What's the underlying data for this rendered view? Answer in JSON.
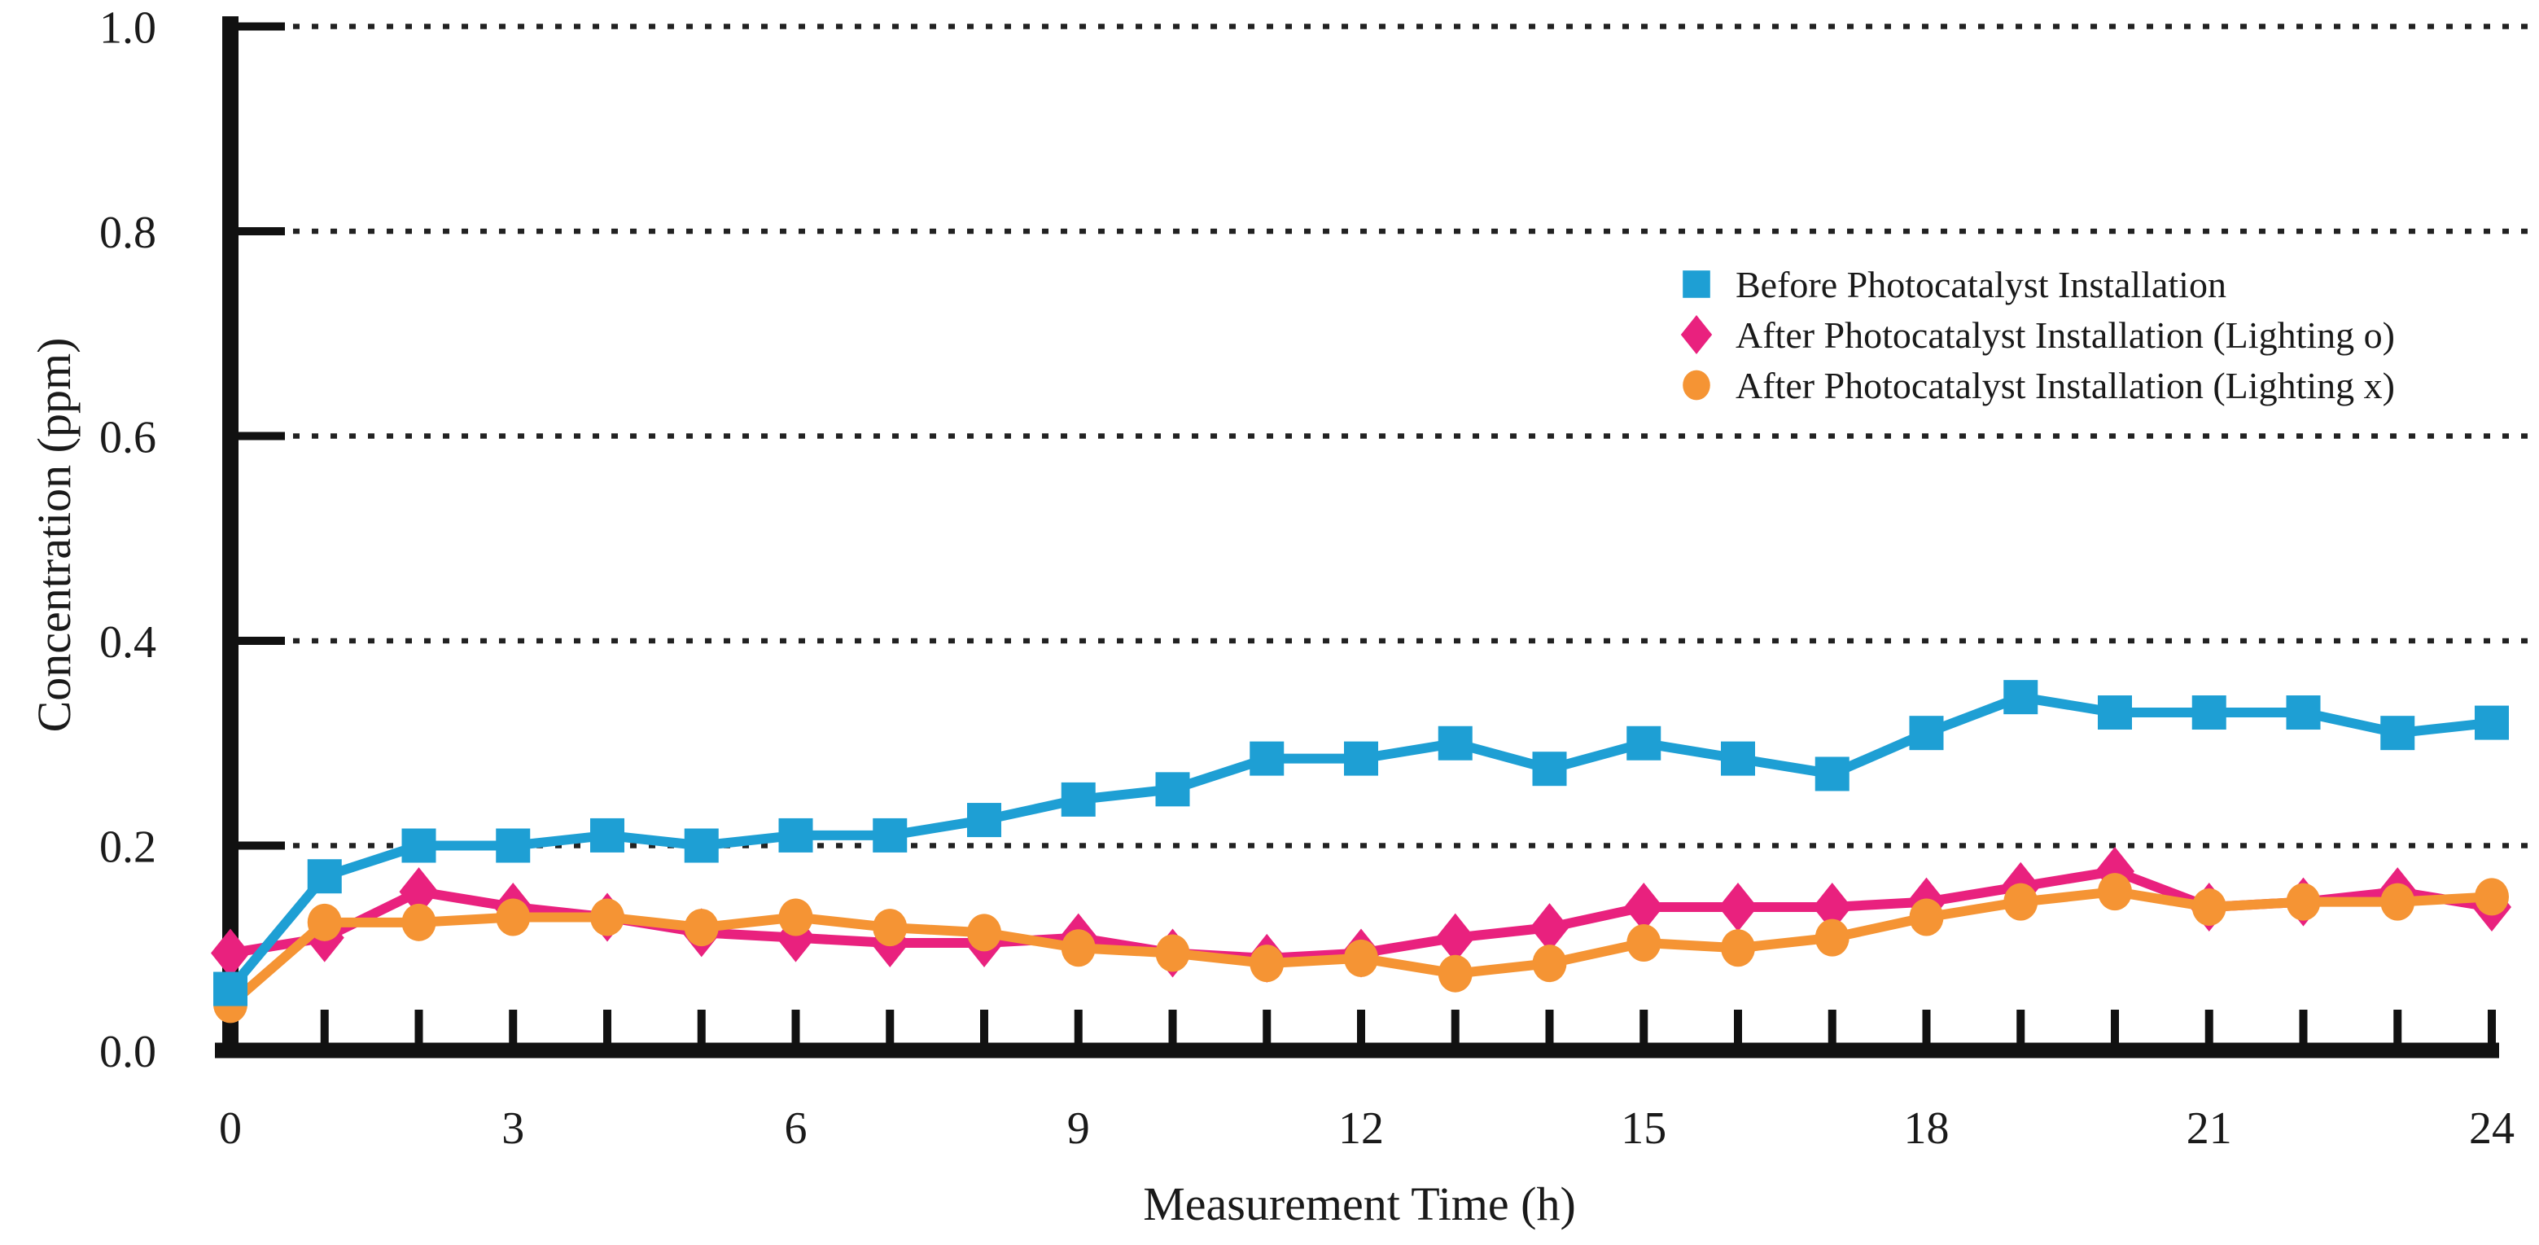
{
  "figure": {
    "background": "#ffffff",
    "axis_color": "#111111",
    "gridline_color": "#222222",
    "text_color": "#1a1a1a"
  },
  "chart_data": {
    "type": "line",
    "title": "",
    "xlabel": "Measurement Time (h)",
    "ylabel": "Concentration (ppm)",
    "xlim": [
      0,
      24
    ],
    "ylim": [
      0.0,
      1.0
    ],
    "x_tick_step_minor": 1,
    "x_tick_labels": [
      "0",
      "3",
      "6",
      "9",
      "12",
      "15",
      "18",
      "21",
      "24"
    ],
    "x_ticks_labeled": [
      0,
      3,
      6,
      9,
      12,
      15,
      18,
      21,
      24
    ],
    "y_ticks": [
      0.0,
      0.2,
      0.4,
      0.6,
      0.8,
      1.0
    ],
    "y_tick_labels": [
      "0.0",
      "0.2",
      "0.4",
      "0.6",
      "0.8",
      "1.0"
    ],
    "grid": "horizontal dotted lines at 0.2 intervals",
    "legend_position": "inside upper right",
    "x": [
      0,
      1,
      2,
      3,
      4,
      5,
      6,
      7,
      8,
      9,
      10,
      11,
      12,
      13,
      14,
      15,
      16,
      17,
      18,
      19,
      20,
      21,
      22,
      23,
      24
    ],
    "series": [
      {
        "name": "Before Photocatalyst Installation",
        "marker": "square",
        "color": "#1e9fd4",
        "values": [
          0.06,
          0.17,
          0.2,
          0.2,
          0.21,
          0.2,
          0.21,
          0.21,
          0.225,
          0.245,
          0.255,
          0.285,
          0.285,
          0.3,
          0.275,
          0.3,
          0.285,
          0.27,
          0.31,
          0.345,
          0.33,
          0.33,
          0.33,
          0.31,
          0.32
        ]
      },
      {
        "name": "After Photocatalyst Installation (Lighting o)",
        "marker": "diamond",
        "color": "#e9217e",
        "values": [
          0.095,
          0.11,
          0.155,
          0.14,
          0.13,
          0.115,
          0.11,
          0.105,
          0.105,
          0.11,
          0.095,
          0.09,
          0.095,
          0.11,
          0.12,
          0.14,
          0.14,
          0.14,
          0.145,
          0.16,
          0.175,
          0.14,
          0.145,
          0.155,
          0.14
        ]
      },
      {
        "name": "After Photocatalyst Installation (Lighting x)",
        "marker": "circle",
        "color": "#f59434",
        "values": [
          0.045,
          0.125,
          0.125,
          0.13,
          0.13,
          0.12,
          0.13,
          0.12,
          0.115,
          0.1,
          0.095,
          0.085,
          0.09,
          0.075,
          0.085,
          0.105,
          0.1,
          0.11,
          0.13,
          0.145,
          0.155,
          0.14,
          0.145,
          0.145,
          0.15
        ]
      }
    ]
  }
}
